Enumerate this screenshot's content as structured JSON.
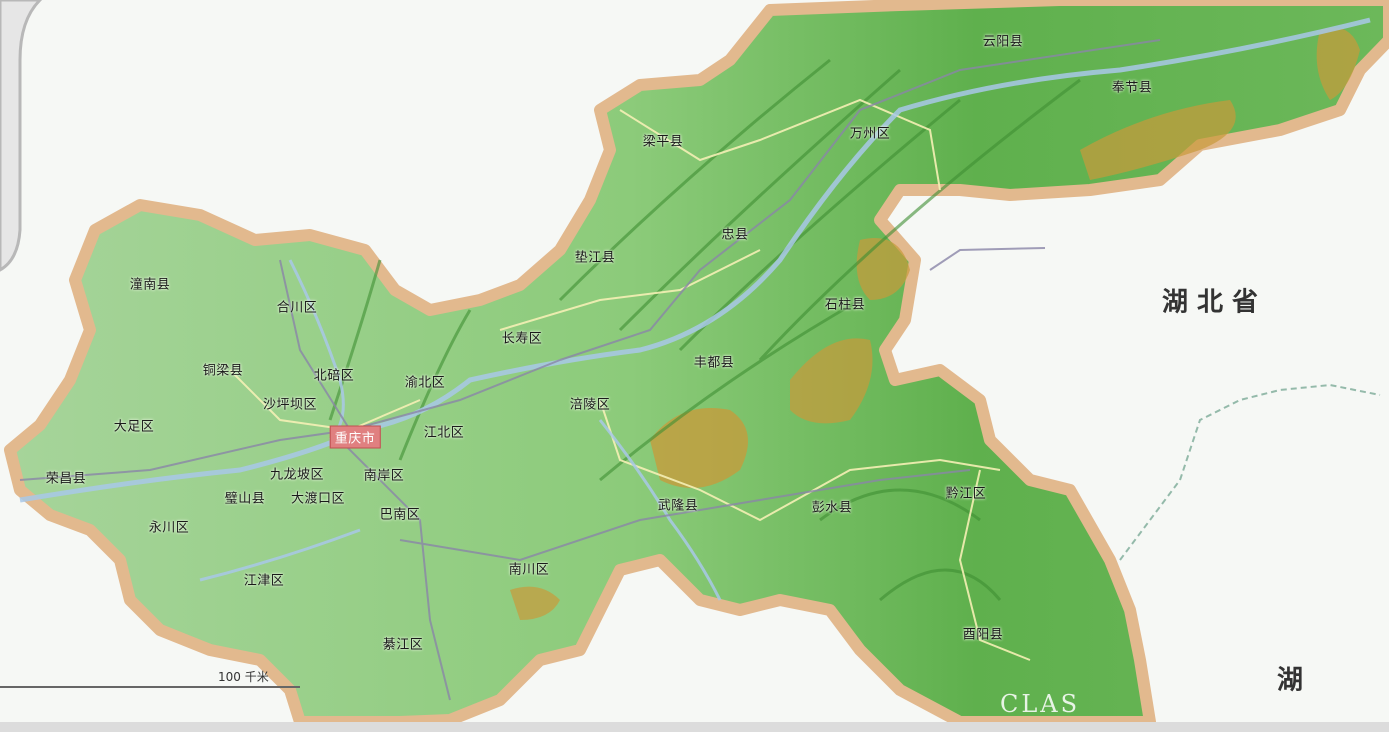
{
  "map": {
    "province_labels": {
      "hubei": "湖 北 省",
      "hunan": "湖"
    },
    "districts": [
      {
        "id": "yunyang",
        "label": "云阳县"
      },
      {
        "id": "fengjie",
        "label": "奉节县"
      },
      {
        "id": "liangping",
        "label": "梁平县"
      },
      {
        "id": "wanzhou",
        "label": "万州区"
      },
      {
        "id": "zhongxian",
        "label": "忠县"
      },
      {
        "id": "dianjiang",
        "label": "垫江县"
      },
      {
        "id": "shizhu",
        "label": "石柱县"
      },
      {
        "id": "tongnan",
        "label": "潼南县"
      },
      {
        "id": "hechuan",
        "label": "合川区"
      },
      {
        "id": "changshou",
        "label": "长寿区"
      },
      {
        "id": "fengdu",
        "label": "丰都县"
      },
      {
        "id": "tongliang",
        "label": "铜梁县"
      },
      {
        "id": "beibei",
        "label": "北碚区"
      },
      {
        "id": "yubei",
        "label": "渝北区"
      },
      {
        "id": "shapingba",
        "label": "沙坪坝区"
      },
      {
        "id": "fuling",
        "label": "涪陵区"
      },
      {
        "id": "dazu",
        "label": "大足区"
      },
      {
        "id": "chongqing",
        "label": "重庆市",
        "capital": true
      },
      {
        "id": "jiangbei",
        "label": "江北区"
      },
      {
        "id": "rongchang",
        "label": "荣昌县"
      },
      {
        "id": "jiulongpo",
        "label": "九龙坡区"
      },
      {
        "id": "nanan",
        "label": "南岸区"
      },
      {
        "id": "bishan",
        "label": "璧山县"
      },
      {
        "id": "dadukou",
        "label": "大渡口区"
      },
      {
        "id": "wulong",
        "label": "武隆县"
      },
      {
        "id": "pengshui",
        "label": "彭水县"
      },
      {
        "id": "qianjiang",
        "label": "黔江区"
      },
      {
        "id": "banan",
        "label": "巴南区"
      },
      {
        "id": "yongchuan",
        "label": "永川区"
      },
      {
        "id": "nanchuan",
        "label": "南川区"
      },
      {
        "id": "jiangjin",
        "label": "江津区"
      },
      {
        "id": "qijiang",
        "label": "綦江区"
      },
      {
        "id": "youyang",
        "label": "酉阳县"
      }
    ],
    "scale_label": "100 千米",
    "watermark": "CLAS",
    "colors": {
      "lowland": "#9fd08f",
      "upland": "#5cb04a",
      "highland": "#c99a3a",
      "border": "#e2b98e",
      "river": "#a8c8e8",
      "road": "#8a86a8"
    }
  }
}
